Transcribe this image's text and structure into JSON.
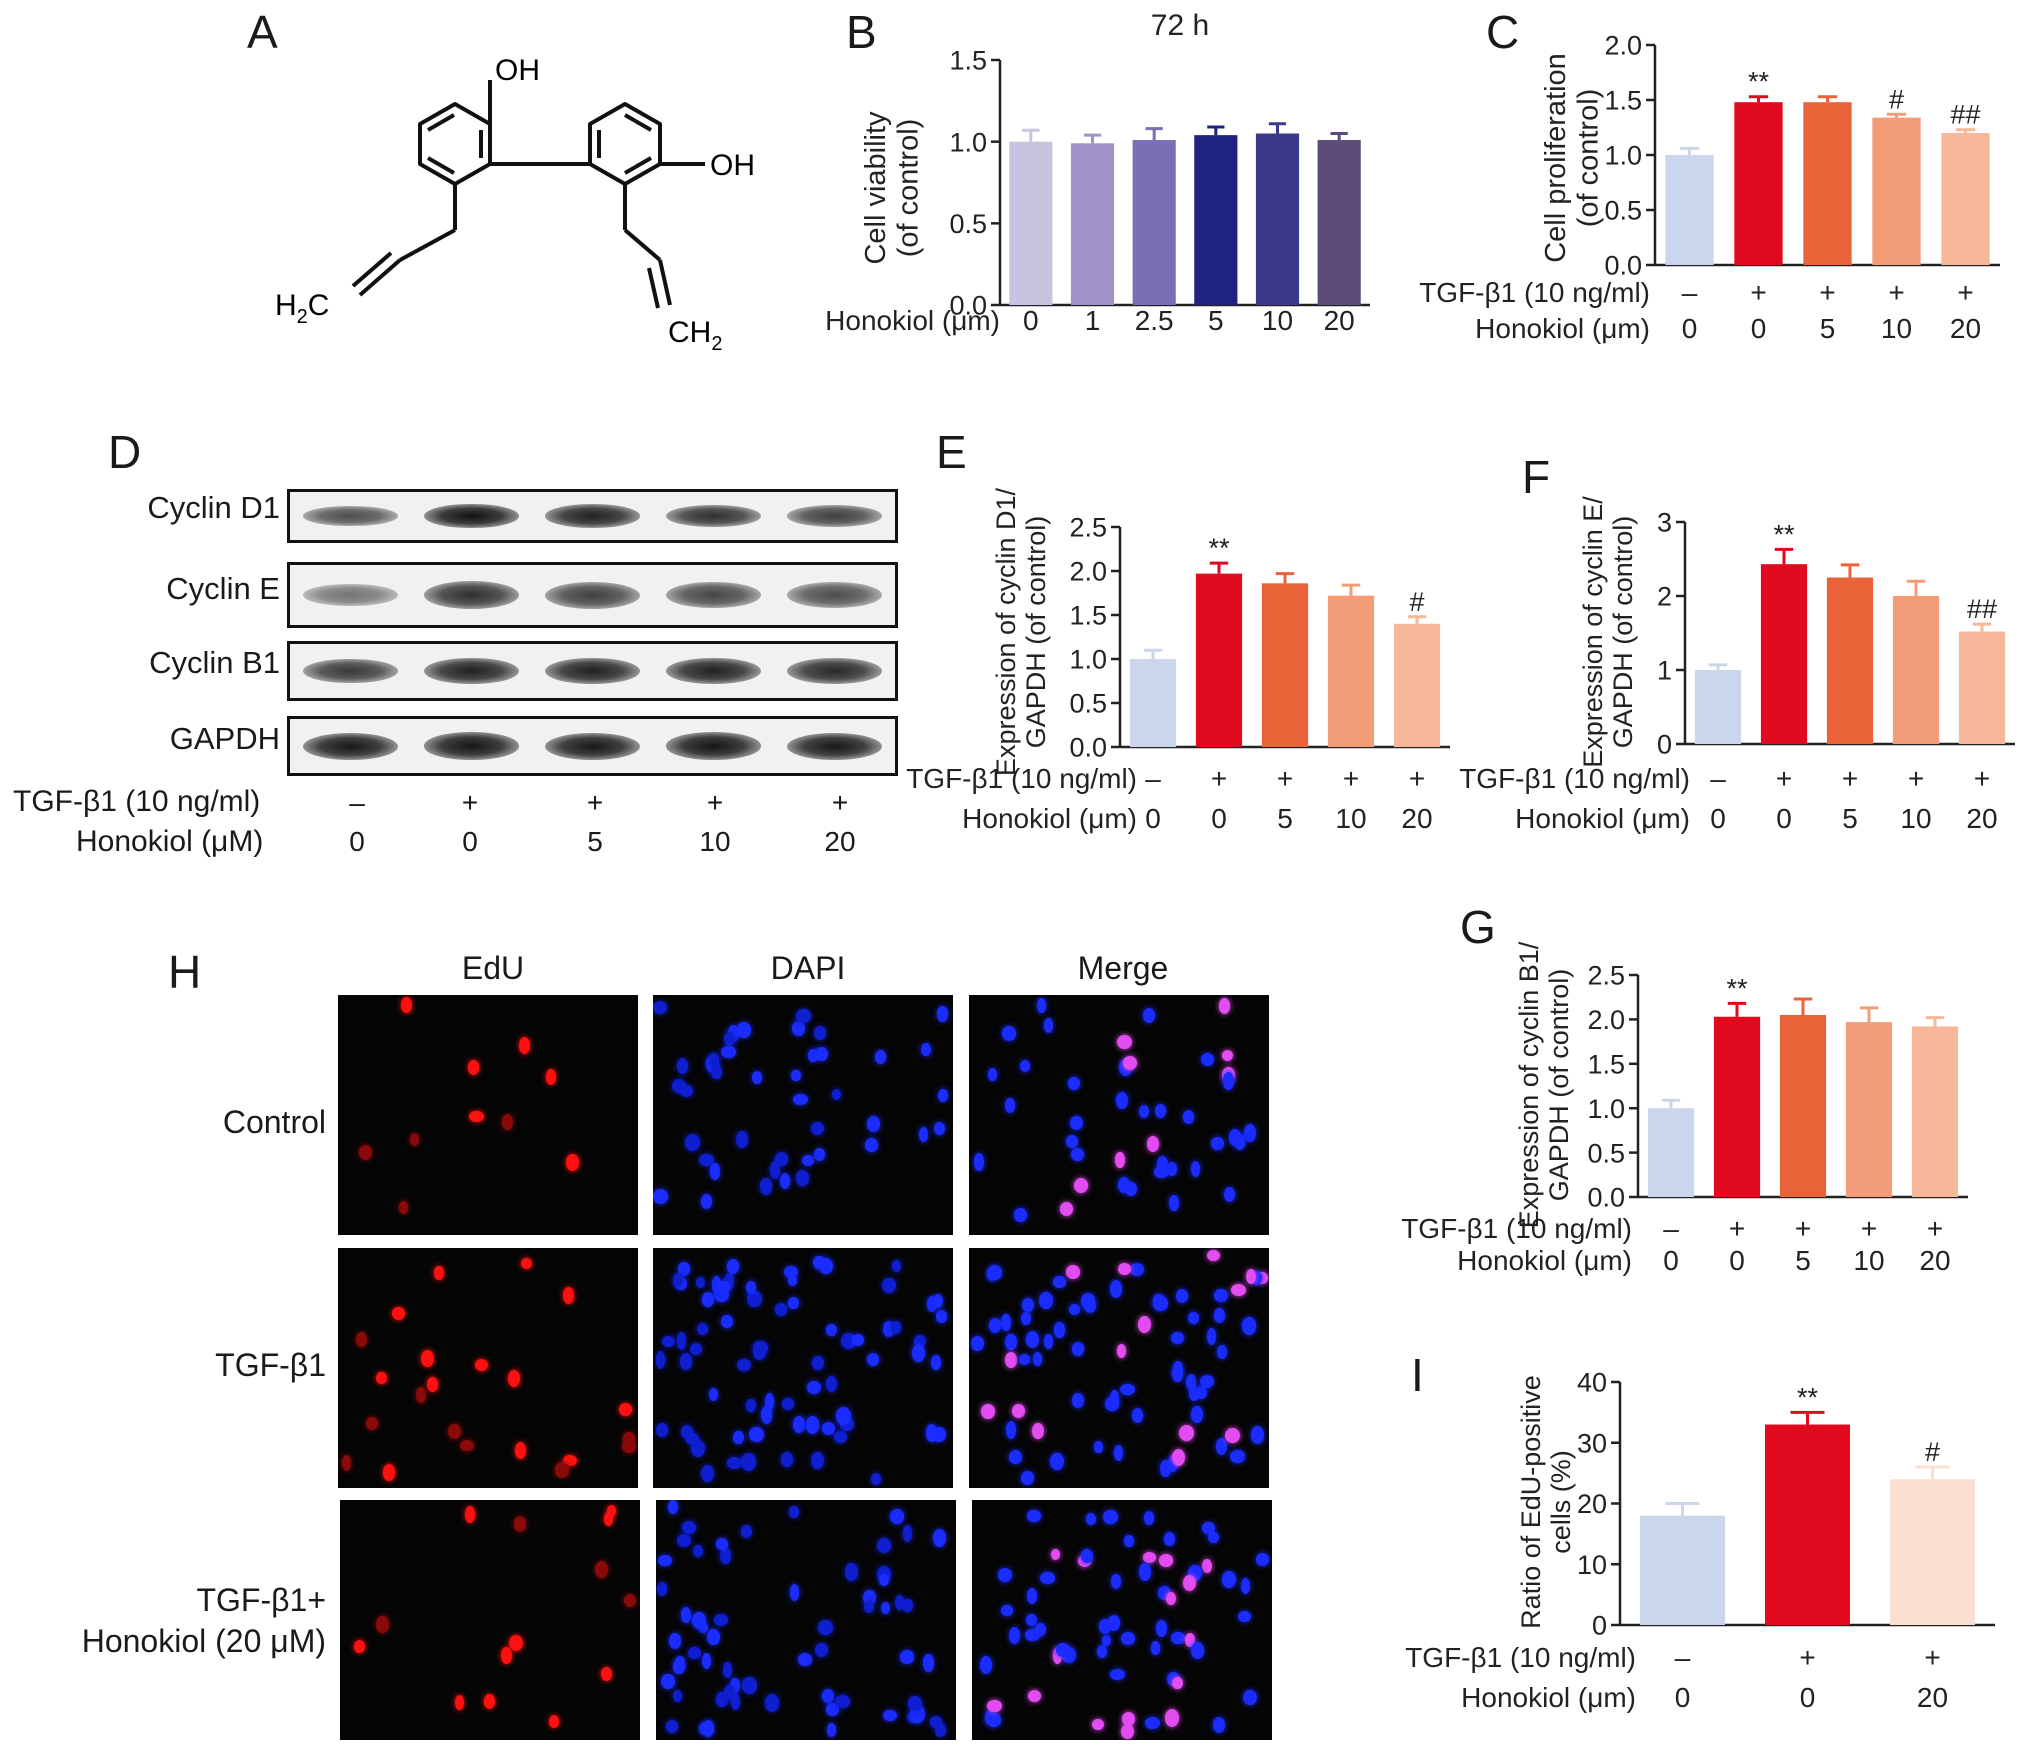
{
  "panels": {
    "A": "A",
    "B": "B",
    "C": "C",
    "D": "D",
    "E": "E",
    "F": "F",
    "G": "G",
    "H": "H",
    "I": "I"
  },
  "structure": {
    "oh_top": "OH",
    "oh_right": "OH",
    "h2c_main": "H",
    "h2c_sub": "2",
    "h2c_tail": "C",
    "ch2_main": "CH",
    "ch2_sub": "2"
  },
  "colors": {
    "b": [
      "#c9c3e0",
      "#a092c9",
      "#7b6eb5",
      "#1f2280",
      "#3b3a88",
      "#5b4c78"
    ],
    "treat5": [
      "#c9d6ec",
      "#e1091d",
      "#ea6338",
      "#f29c78",
      "#f6b898"
    ],
    "treat3": [
      "#c9d6ec",
      "#e1091d",
      "#fbe0d2"
    ]
  },
  "blot": {
    "proteins": [
      "Cyclin D1",
      "Cyclin E",
      "Cyclin B1",
      "GAPDH"
    ],
    "tgf_label": "TGF-β1 (10 ng/ml)",
    "honokiol_label": "Honokiol (μM)",
    "tgf_values": [
      "–",
      "+",
      "+",
      "+",
      "+"
    ],
    "honokiol_values": [
      "0",
      "0",
      "5",
      "10",
      "20"
    ],
    "band_intensity": [
      [
        0.55,
        0.95,
        0.85,
        0.75,
        0.65
      ],
      [
        0.3,
        0.75,
        0.65,
        0.6,
        0.55
      ],
      [
        0.7,
        0.85,
        0.85,
        0.85,
        0.8
      ],
      [
        0.9,
        0.92,
        0.9,
        0.92,
        0.9
      ]
    ]
  },
  "microscopy": {
    "columns": [
      "EdU",
      "DAPI",
      "Merge"
    ],
    "rows": [
      "Control",
      "TGF-β1",
      "TGF-β1+",
      "Honokiol (20 μM)"
    ]
  },
  "chart_data": [
    {
      "id": "B",
      "type": "bar",
      "title": "72 h",
      "ylabel_lines": [
        "Cell viability",
        "(of control)"
      ],
      "row_labels": [
        "Honokiol (μm)"
      ],
      "row_values": [
        [
          "0",
          "1",
          "2.5",
          "5",
          "10",
          "20"
        ]
      ],
      "values": [
        1.0,
        0.99,
        1.01,
        1.04,
        1.05,
        1.01
      ],
      "errors": [
        0.07,
        0.05,
        0.07,
        0.05,
        0.06,
        0.04
      ],
      "annotations": [
        "",
        "",
        "",
        "",
        "",
        ""
      ],
      "ylim": [
        0,
        1.5
      ],
      "yticks": [
        "0.0",
        "0.5",
        "1.0",
        "1.5"
      ]
    },
    {
      "id": "C",
      "type": "bar",
      "ylabel_lines": [
        "Cell proliferation",
        "(of control)"
      ],
      "row_labels": [
        "TGF-β1 (10 ng/ml)",
        "Honokiol (μm)"
      ],
      "row_values": [
        [
          "–",
          "+",
          "+",
          "+",
          "+"
        ],
        [
          "0",
          "0",
          "5",
          "10",
          "20"
        ]
      ],
      "values": [
        1.0,
        1.48,
        1.48,
        1.34,
        1.2
      ],
      "errors": [
        0.06,
        0.05,
        0.05,
        0.03,
        0.03
      ],
      "annotations": [
        "",
        "**",
        "",
        "#",
        "##"
      ],
      "ylim": [
        0,
        2.0
      ],
      "yticks": [
        "0.0",
        "0.5",
        "1.0",
        "1.5",
        "2.0"
      ]
    },
    {
      "id": "E",
      "type": "bar",
      "ylabel_lines": [
        "Expression of cyclin D1/",
        "GAPDH (of control)"
      ],
      "row_labels": [
        "TGF-β1 (10 ng/ml)",
        "Honokiol (μm)"
      ],
      "row_values": [
        [
          "–",
          "+",
          "+",
          "+",
          "+"
        ],
        [
          "0",
          "0",
          "5",
          "10",
          "20"
        ]
      ],
      "values": [
        1.0,
        1.97,
        1.86,
        1.72,
        1.4
      ],
      "errors": [
        0.1,
        0.12,
        0.11,
        0.12,
        0.08
      ],
      "annotations": [
        "",
        "**",
        "",
        "",
        "#"
      ],
      "ylim": [
        0,
        2.5
      ],
      "yticks": [
        "0.0",
        "0.5",
        "1.0",
        "1.5",
        "2.0",
        "2.5"
      ]
    },
    {
      "id": "F",
      "type": "bar",
      "ylabel_lines": [
        "Expression of cyclin E/",
        "GAPDH (of control)"
      ],
      "row_labels": [
        "TGF-β1 (10 ng/ml)",
        "Honokiol (μm)"
      ],
      "row_values": [
        [
          "–",
          "+",
          "+",
          "+",
          "+"
        ],
        [
          "0",
          "0",
          "5",
          "10",
          "20"
        ]
      ],
      "values": [
        1.0,
        2.43,
        2.25,
        2.0,
        1.52
      ],
      "errors": [
        0.07,
        0.2,
        0.17,
        0.2,
        0.1
      ],
      "annotations": [
        "",
        "**",
        "",
        "",
        "##"
      ],
      "ylim": [
        0,
        3
      ],
      "yticks": [
        "0",
        "1",
        "2",
        "3"
      ]
    },
    {
      "id": "G",
      "type": "bar",
      "ylabel_lines": [
        "Expression of cyclin B1/",
        "GAPDH (of control)"
      ],
      "row_labels": [
        "TGF-β1 (10 ng/ml)",
        "Honokiol (μm)"
      ],
      "row_values": [
        [
          "–",
          "+",
          "+",
          "+",
          "+"
        ],
        [
          "0",
          "0",
          "5",
          "10",
          "20"
        ]
      ],
      "values": [
        1.0,
        2.03,
        2.05,
        1.97,
        1.92
      ],
      "errors": [
        0.09,
        0.15,
        0.18,
        0.16,
        0.1
      ],
      "annotations": [
        "",
        "**",
        "",
        "",
        ""
      ],
      "ylim": [
        0,
        2.5
      ],
      "yticks": [
        "0.0",
        "0.5",
        "1.0",
        "1.5",
        "2.0",
        "2.5"
      ]
    },
    {
      "id": "I",
      "type": "bar",
      "ylabel_lines": [
        "Ratio of EdU-positive",
        "cells (%)"
      ],
      "row_labels": [
        "TGF-β1 (10 ng/ml)",
        "Honokiol (μm)"
      ],
      "row_values": [
        [
          "–",
          "+",
          "+"
        ],
        [
          "0",
          "0",
          "20"
        ]
      ],
      "values": [
        18,
        33,
        24
      ],
      "errors": [
        2,
        2,
        2
      ],
      "annotations": [
        "",
        "**",
        "#"
      ],
      "ylim": [
        0,
        40
      ],
      "yticks": [
        "0",
        "10",
        "20",
        "30",
        "40"
      ]
    }
  ]
}
